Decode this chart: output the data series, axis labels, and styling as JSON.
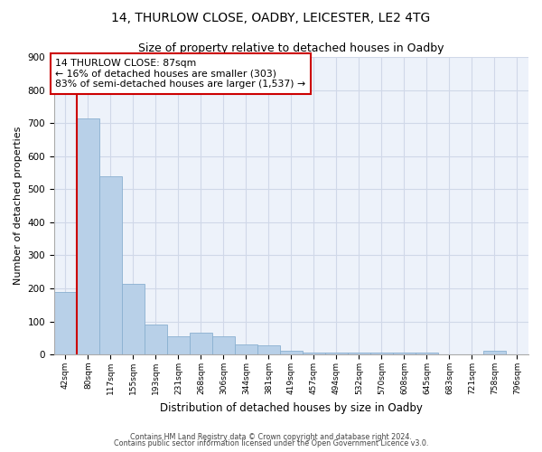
{
  "title1": "14, THURLOW CLOSE, OADBY, LEICESTER, LE2 4TG",
  "title2": "Size of property relative to detached houses in Oadby",
  "xlabel": "Distribution of detached houses by size in Oadby",
  "ylabel": "Number of detached properties",
  "categories": [
    "42sqm",
    "80sqm",
    "117sqm",
    "155sqm",
    "193sqm",
    "231sqm",
    "268sqm",
    "306sqm",
    "344sqm",
    "381sqm",
    "419sqm",
    "457sqm",
    "494sqm",
    "532sqm",
    "570sqm",
    "608sqm",
    "645sqm",
    "683sqm",
    "721sqm",
    "758sqm",
    "796sqm"
  ],
  "values": [
    190,
    715,
    540,
    215,
    90,
    55,
    65,
    55,
    30,
    28,
    10,
    5,
    5,
    5,
    5,
    5,
    5,
    0,
    0,
    10,
    0
  ],
  "bar_color": "#b8d0e8",
  "bar_edge_color": "#8ab0d0",
  "vline_color": "#cc0000",
  "annotation_line1": "14 THURLOW CLOSE: 87sqm",
  "annotation_line2": "← 16% of detached houses are smaller (303)",
  "annotation_line3": "83% of semi-detached houses are larger (1,537) →",
  "annotation_box_color": "white",
  "annotation_box_edge": "#cc0000",
  "ylim": [
    0,
    900
  ],
  "yticks": [
    0,
    100,
    200,
    300,
    400,
    500,
    600,
    700,
    800,
    900
  ],
  "footer1": "Contains HM Land Registry data © Crown copyright and database right 2024.",
  "footer2": "Contains public sector information licensed under the Open Government Licence v3.0.",
  "bg_color": "#edf2fa",
  "grid_color": "#d0d8e8",
  "title1_fontsize": 10,
  "title2_fontsize": 9
}
